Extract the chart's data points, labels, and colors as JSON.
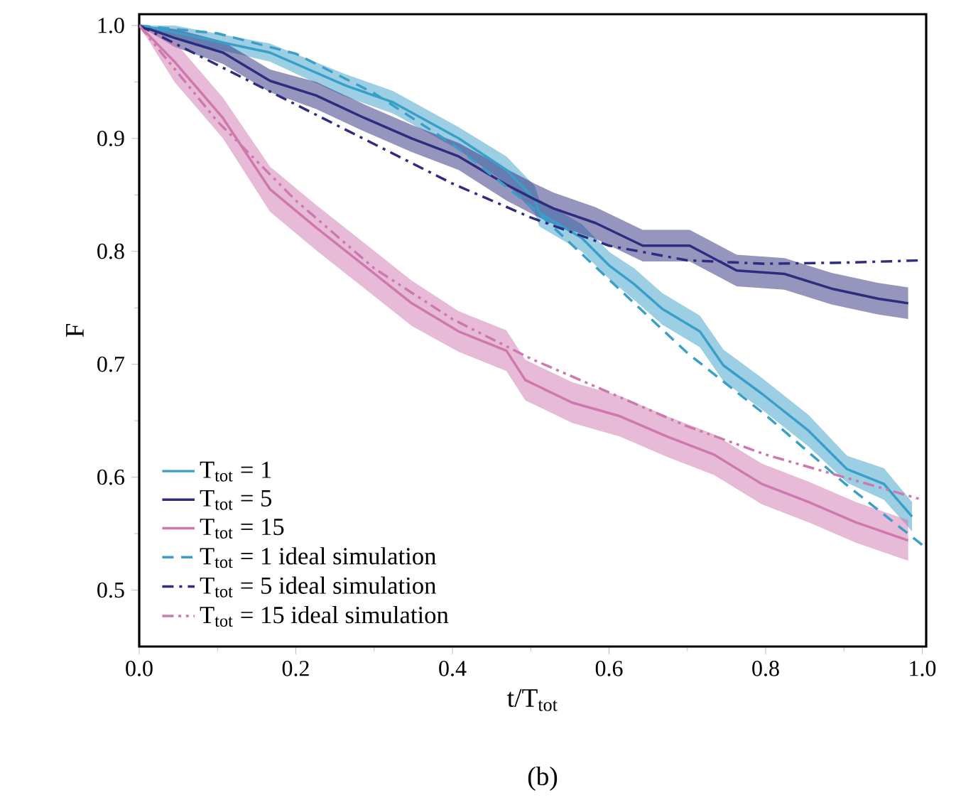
{
  "chart_data": {
    "type": "line",
    "xlabel": "t/T$_{tot}$",
    "ylabel": "F",
    "annotations": [
      "(b)"
    ],
    "xlim": [
      0,
      1.005
    ],
    "ylim": [
      0.45,
      1.01
    ],
    "xticks": [
      {
        "value": 0,
        "label": "0.0"
      },
      {
        "value": 0.2,
        "label": "0.2"
      },
      {
        "value": 0.4,
        "label": "0.4"
      },
      {
        "value": 0.6,
        "label": "0.6"
      },
      {
        "value": 0.8,
        "label": "0.8"
      },
      {
        "value": 1,
        "label": "1.0"
      }
    ],
    "yticks": [
      0.5,
      0.6,
      0.7,
      0.8,
      0.9,
      {
        "value": 1,
        "label": "1.0"
      }
    ],
    "legend": "bottom left",
    "grid": false,
    "series": [
      {
        "name": "T$_{tot}$ = 1",
        "color": "#3a9fc8",
        "line_style": "solid",
        "x": [
          0,
          0.045,
          0.167,
          0.263,
          0.324,
          0.408,
          0.469,
          0.505,
          0.511,
          0.565,
          0.601,
          0.632,
          0.668,
          0.716,
          0.746,
          0.795,
          0.855,
          0.904,
          0.951,
          0.987
        ],
        "values": [
          1.0,
          0.994,
          0.976,
          0.947,
          0.932,
          0.9,
          0.872,
          0.846,
          0.834,
          0.812,
          0.787,
          0.771,
          0.749,
          0.729,
          0.699,
          0.674,
          0.641,
          0.607,
          0.594,
          0.565
        ],
        "lower": [
          1.0,
          0.988,
          0.968,
          0.937,
          0.922,
          0.89,
          0.86,
          0.834,
          0.822,
          0.8,
          0.775,
          0.757,
          0.735,
          0.715,
          0.685,
          0.66,
          0.627,
          0.595,
          0.58,
          0.552
        ],
        "upper": [
          1.0,
          1.0,
          0.984,
          0.957,
          0.942,
          0.91,
          0.884,
          0.858,
          0.846,
          0.824,
          0.799,
          0.785,
          0.763,
          0.743,
          0.713,
          0.688,
          0.655,
          0.619,
          0.608,
          0.578
        ]
      },
      {
        "name": "T$_{tot}$ = 5",
        "color": "#2e2c7e",
        "line_style": "solid",
        "x": [
          0,
          0.045,
          0.107,
          0.167,
          0.226,
          0.288,
          0.348,
          0.408,
          0.469,
          0.505,
          0.529,
          0.583,
          0.643,
          0.703,
          0.763,
          0.824,
          0.884,
          0.944,
          0.982
        ],
        "values": [
          1.0,
          0.989,
          0.976,
          0.951,
          0.938,
          0.918,
          0.9,
          0.884,
          0.859,
          0.846,
          0.838,
          0.825,
          0.805,
          0.805,
          0.783,
          0.78,
          0.767,
          0.758,
          0.754
        ],
        "lower": [
          1.0,
          0.981,
          0.966,
          0.941,
          0.926,
          0.906,
          0.888,
          0.872,
          0.845,
          0.832,
          0.824,
          0.811,
          0.791,
          0.791,
          0.769,
          0.766,
          0.753,
          0.744,
          0.74
        ],
        "upper": [
          1.0,
          0.997,
          0.986,
          0.961,
          0.95,
          0.93,
          0.912,
          0.896,
          0.873,
          0.86,
          0.852,
          0.839,
          0.819,
          0.819,
          0.797,
          0.794,
          0.781,
          0.772,
          0.768
        ]
      },
      {
        "name": "T$_{tot}$ = 15",
        "color": "#cf78b0",
        "line_style": "solid",
        "x": [
          0,
          0.045,
          0.107,
          0.167,
          0.226,
          0.288,
          0.348,
          0.408,
          0.469,
          0.493,
          0.553,
          0.614,
          0.674,
          0.734,
          0.795,
          0.855,
          0.915,
          0.982
        ],
        "values": [
          1.0,
          0.968,
          0.918,
          0.855,
          0.821,
          0.787,
          0.754,
          0.729,
          0.712,
          0.686,
          0.666,
          0.654,
          0.636,
          0.62,
          0.594,
          0.578,
          0.56,
          0.544
        ],
        "lower": [
          1.0,
          0.95,
          0.9,
          0.835,
          0.801,
          0.767,
          0.734,
          0.711,
          0.694,
          0.668,
          0.648,
          0.636,
          0.618,
          0.602,
          0.576,
          0.56,
          0.542,
          0.526
        ],
        "upper": [
          1.0,
          0.986,
          0.936,
          0.875,
          0.841,
          0.807,
          0.774,
          0.747,
          0.73,
          0.704,
          0.684,
          0.672,
          0.654,
          0.638,
          0.612,
          0.596,
          0.578,
          0.562
        ]
      },
      {
        "name": "T$_{tot}$ = 1 ideal simulation",
        "color": "#3a9fc8",
        "line_style": "dashed",
        "x": [
          0,
          0.1,
          0.2,
          0.3,
          0.4,
          0.5,
          0.6,
          0.7,
          0.8,
          0.9,
          1.0
        ],
        "values": [
          1.0,
          0.993,
          0.975,
          0.94,
          0.895,
          0.84,
          0.775,
          0.71,
          0.655,
          0.595,
          0.54
        ]
      },
      {
        "name": "T$_{tot}$ = 5 ideal simulation",
        "color": "#2e2c7e",
        "line_style": "dashdot",
        "x": [
          0,
          0.1,
          0.2,
          0.3,
          0.4,
          0.5,
          0.6,
          0.7,
          0.8,
          0.9,
          1.0
        ],
        "values": [
          1.0,
          0.965,
          0.93,
          0.895,
          0.86,
          0.83,
          0.805,
          0.792,
          0.789,
          0.79,
          0.792
        ]
      },
      {
        "name": "T$_{tot}$ = 15 ideal simulation",
        "color": "#cf78b0",
        "line_style": "dashdotdot",
        "x": [
          0,
          0.1,
          0.2,
          0.3,
          0.4,
          0.5,
          0.6,
          0.7,
          0.8,
          0.9,
          1.0
        ],
        "values": [
          1.0,
          0.915,
          0.845,
          0.785,
          0.74,
          0.705,
          0.675,
          0.645,
          0.62,
          0.6,
          0.58
        ]
      }
    ]
  }
}
